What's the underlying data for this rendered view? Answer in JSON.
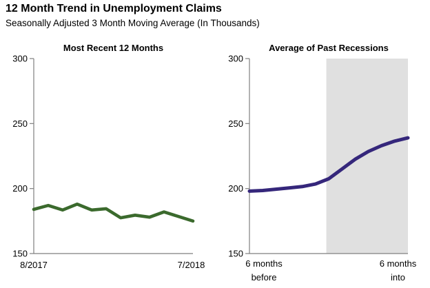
{
  "header": {
    "title": "12 Month Trend in Unemployment Claims",
    "subtitle": "Seasonally Adjusted 3 Month Moving Average (In Thousands)"
  },
  "colors": {
    "axis": "#7f7f7f",
    "tick_text": "#000000",
    "recent_line": "#3b6a2d",
    "recessions_line": "#35277b",
    "recession_shade": "#e0e0e0"
  },
  "chart_data": [
    {
      "type": "line",
      "title": "Most Recent 12 Months",
      "x_tick_labels": [
        [
          "8/2017"
        ],
        [
          "7/2018"
        ]
      ],
      "n_points": 12,
      "values": [
        184,
        187,
        183.5,
        188,
        183.5,
        184.5,
        177.5,
        179.5,
        178,
        182,
        178.5,
        175
      ],
      "ylim": [
        150,
        300
      ],
      "y_ticks": [
        150,
        200,
        250,
        300
      ],
      "line_color": "#3b6a2d",
      "grid": false,
      "legend": null
    },
    {
      "type": "line",
      "title": "Average of Past Recessions",
      "x_tick_labels": [
        [
          "6 months",
          "before"
        ],
        [
          "6 months",
          "into"
        ]
      ],
      "n_points": 13,
      "values": [
        198,
        198.5,
        199.5,
        200.5,
        201.5,
        203.5,
        207.5,
        215,
        222.5,
        228.5,
        233,
        236.5,
        239
      ],
      "ylim": [
        150,
        300
      ],
      "y_ticks": [
        150,
        200,
        250,
        300
      ],
      "line_color": "#35277b",
      "grid": false,
      "legend": null,
      "shaded_region": {
        "color": "#e0e0e0",
        "x_start_fraction": 0.485,
        "x_end_fraction": 1.0
      }
    }
  ]
}
